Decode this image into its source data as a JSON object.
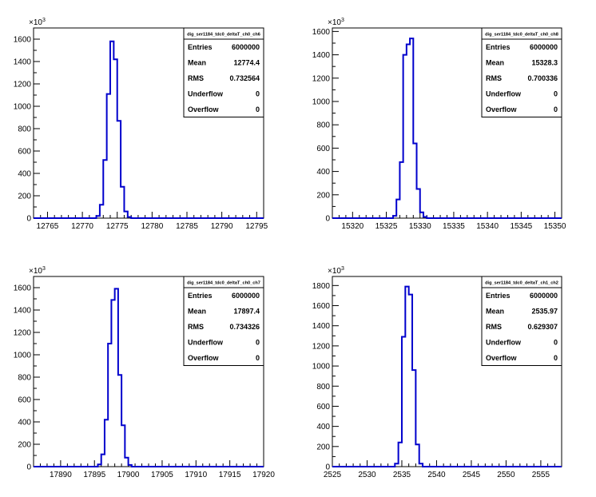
{
  "panels": [
    {
      "stats": {
        "title": "dig_ser1184_tdc0_deltaT_ch0_ch6",
        "rows": [
          {
            "label": "Entries",
            "value": "6000000"
          },
          {
            "label": "Mean",
            "value": "12774.4"
          },
          {
            "label": "RMS",
            "value": "0.732564"
          },
          {
            "label": "Underflow",
            "value": "0"
          },
          {
            "label": "Overflow",
            "value": "0"
          }
        ]
      },
      "exponent_label": "×10",
      "exponent_power": "3"
    },
    {
      "stats": {
        "title": "dig_ser1184_tdc0_deltaT_ch0_ch8",
        "rows": [
          {
            "label": "Entries",
            "value": "6000000"
          },
          {
            "label": "Mean",
            "value": "15328.3"
          },
          {
            "label": "RMS",
            "value": "0.700336"
          },
          {
            "label": "Underflow",
            "value": "0"
          },
          {
            "label": "Overflow",
            "value": "0"
          }
        ]
      },
      "exponent_label": "×10",
      "exponent_power": "3"
    },
    {
      "stats": {
        "title": "dig_ser1184_tdc0_deltaT_ch0_ch7",
        "rows": [
          {
            "label": "Entries",
            "value": "6000000"
          },
          {
            "label": "Mean",
            "value": "17897.4"
          },
          {
            "label": "RMS",
            "value": "0.734326"
          },
          {
            "label": "Underflow",
            "value": "0"
          },
          {
            "label": "Overflow",
            "value": "0"
          }
        ]
      },
      "exponent_label": "×10",
      "exponent_power": "3"
    },
    {
      "stats": {
        "title": "dig_ser1184_tdc0_deltaT_ch1_ch2",
        "rows": [
          {
            "label": "Entries",
            "value": "6000000"
          },
          {
            "label": "Mean",
            "value": "2535.97"
          },
          {
            "label": "RMS",
            "value": "0.629307"
          },
          {
            "label": "Underflow",
            "value": "0"
          },
          {
            "label": "Overflow",
            "value": "0"
          }
        ]
      },
      "exponent_label": "×10",
      "exponent_power": "3"
    }
  ],
  "chart_data": [
    {
      "type": "histogram",
      "title": "",
      "xlabel": "",
      "ylabel": "",
      "xlim": [
        12763,
        12796
      ],
      "ylim": [
        0,
        1700
      ],
      "y_multiplier": 1000,
      "x_ticks": [
        12765,
        12770,
        12775,
        12780,
        12785,
        12790,
        12795
      ],
      "y_ticks": [
        0,
        200,
        400,
        600,
        800,
        1000,
        1200,
        1400,
        1600
      ],
      "bin_width": 0.5,
      "bins": [
        [
          12772.0,
          20
        ],
        [
          12772.5,
          120
        ],
        [
          12773.0,
          520
        ],
        [
          12773.5,
          1110
        ],
        [
          12774.0,
          1580
        ],
        [
          12774.5,
          1420
        ],
        [
          12775.0,
          870
        ],
        [
          12775.5,
          280
        ],
        [
          12776.0,
          60
        ],
        [
          12776.5,
          10
        ]
      ],
      "color": "#0000cc",
      "grid": false
    },
    {
      "type": "histogram",
      "title": "",
      "xlabel": "",
      "ylabel": "",
      "xlim": [
        15317,
        15351
      ],
      "ylim": [
        0,
        1630
      ],
      "y_multiplier": 1000,
      "x_ticks": [
        15320,
        15325,
        15330,
        15335,
        15340,
        15345,
        15350
      ],
      "y_ticks": [
        0,
        200,
        400,
        600,
        800,
        1000,
        1200,
        1400,
        1600
      ],
      "bin_width": 0.5,
      "bins": [
        [
          15326.0,
          20
        ],
        [
          15326.5,
          160
        ],
        [
          15327.0,
          480
        ],
        [
          15327.5,
          1400
        ],
        [
          15328.0,
          1490
        ],
        [
          15328.5,
          1540
        ],
        [
          15329.0,
          640
        ],
        [
          15329.5,
          250
        ],
        [
          15330.0,
          50
        ],
        [
          15330.5,
          10
        ]
      ],
      "color": "#0000cc",
      "grid": false
    },
    {
      "type": "histogram",
      "title": "",
      "xlabel": "",
      "ylabel": "",
      "xlim": [
        17886,
        17920
      ],
      "ylim": [
        0,
        1700
      ],
      "y_multiplier": 1000,
      "x_ticks": [
        17890,
        17895,
        17900,
        17905,
        17910,
        17915,
        17920
      ],
      "y_ticks": [
        0,
        200,
        400,
        600,
        800,
        1000,
        1200,
        1400,
        1600
      ],
      "bin_width": 0.5,
      "bins": [
        [
          17895.5,
          20
        ],
        [
          17896.0,
          110
        ],
        [
          17896.5,
          420
        ],
        [
          17897.0,
          1100
        ],
        [
          17897.5,
          1490
        ],
        [
          17898.0,
          1590
        ],
        [
          17898.5,
          820
        ],
        [
          17899.0,
          370
        ],
        [
          17899.5,
          80
        ],
        [
          17900.0,
          15
        ]
      ],
      "color": "#0000cc",
      "grid": false
    },
    {
      "type": "histogram",
      "title": "",
      "xlabel": "",
      "ylabel": "",
      "xlim": [
        2525,
        2558
      ],
      "ylim": [
        0,
        1890
      ],
      "y_multiplier": 1000,
      "x_ticks": [
        2525,
        2530,
        2535,
        2540,
        2545,
        2550,
        2555
      ],
      "y_ticks": [
        0,
        200,
        400,
        600,
        800,
        1000,
        1200,
        1400,
        1600,
        1800
      ],
      "bin_width": 0.5,
      "bins": [
        [
          2534.0,
          30
        ],
        [
          2534.5,
          240
        ],
        [
          2535.0,
          1290
        ],
        [
          2535.5,
          1790
        ],
        [
          2536.0,
          1710
        ],
        [
          2536.5,
          960
        ],
        [
          2537.0,
          220
        ],
        [
          2537.5,
          30
        ]
      ],
      "color": "#0000cc",
      "grid": false
    }
  ]
}
